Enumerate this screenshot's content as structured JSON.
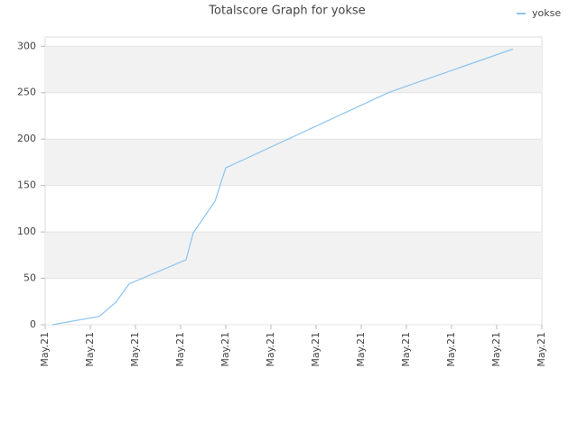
{
  "chart_data": {
    "type": "line",
    "title": "Totalscore Graph for yokse",
    "x": [
      0.16,
      1.2,
      1.56,
      1.86,
      3.12,
      3.28,
      3.76,
      4.0,
      7.6,
      8.0,
      10.36
    ],
    "series": [
      {
        "name": "yokse",
        "color": "#8cc4ee",
        "values": [
          0,
          9,
          24,
          44,
          70,
          99,
          133,
          169,
          250,
          257,
          297
        ]
      }
    ],
    "xlim": [
      0,
      11
    ],
    "xticks": [
      {
        "value": 0,
        "label": "May.21"
      },
      {
        "value": 1,
        "label": "May.21"
      },
      {
        "value": 2,
        "label": "May.21"
      },
      {
        "value": 3,
        "label": "May.21"
      },
      {
        "value": 4,
        "label": "May.21"
      },
      {
        "value": 5,
        "label": "May.21"
      },
      {
        "value": 6,
        "label": "May.21"
      },
      {
        "value": 7,
        "label": "May.21"
      },
      {
        "value": 8,
        "label": "May.21"
      },
      {
        "value": 9,
        "label": "May.21"
      },
      {
        "value": 10,
        "label": "May.21"
      },
      {
        "value": 11,
        "label": "May.21"
      }
    ],
    "ylim": [
      0,
      310
    ],
    "yticks": [
      0,
      50,
      100,
      150,
      200,
      250,
      300
    ],
    "grid": true,
    "legend": "top-right"
  }
}
